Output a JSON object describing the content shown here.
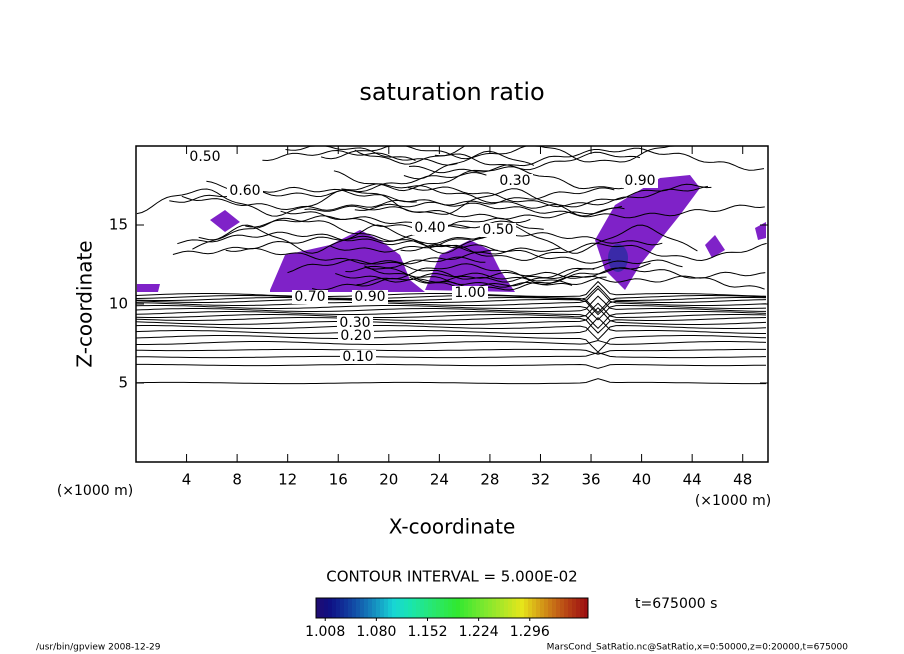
{
  "chart_data": {
    "type": "contour",
    "title": "saturation ratio",
    "x_label": "X-coordinate",
    "y_label": "Z-coordinate",
    "x_unit_left": "(×1000 m)",
    "x_unit_right": "(×1000 m)",
    "xlim": [
      0,
      50
    ],
    "ylim": [
      0,
      20
    ],
    "xticks": [
      4,
      8,
      12,
      16,
      20,
      24,
      28,
      32,
      36,
      40,
      44,
      48
    ],
    "yticks": [
      5,
      10,
      15
    ],
    "contour_labels": [
      {
        "value": 0.5,
        "label": "0.50"
      },
      {
        "value": 0.6,
        "label": "0.60"
      },
      {
        "value": 0.3,
        "label": "0.30"
      },
      {
        "value": 0.4,
        "label": "0.40"
      },
      {
        "value": 0.5,
        "label": "0.50"
      },
      {
        "value": 0.7,
        "label": "0.70"
      },
      {
        "value": 0.9,
        "label": "0.90"
      },
      {
        "value": 1.0,
        "label": "1.00"
      },
      {
        "value": 0.3,
        "label": "0.30"
      },
      {
        "value": 0.2,
        "label": "0.20"
      },
      {
        "value": 0.1,
        "label": "0.10"
      },
      {
        "value": 0.9,
        "label": "0.90"
      }
    ],
    "contour_interval": "CONTOUR INTERVAL = 5.000E-02",
    "time_label": "t=675000 s",
    "colorbar_lim": [
      0.995,
      1.378
    ],
    "colorbar_ticks": [
      {
        "value": 1.008,
        "label": "1.008"
      },
      {
        "value": 1.08,
        "label": "1.080"
      },
      {
        "value": 1.152,
        "label": "1.152"
      },
      {
        "value": 1.224,
        "label": "1.224"
      },
      {
        "value": 1.296,
        "label": "1.296"
      }
    ],
    "footer_left": "/usr/bin/gpview   2008-12-29",
    "footer_right": "MarsCond_SatRatio.nc@SatRatio,x=0:50000,z=0:20000,t=675000"
  }
}
